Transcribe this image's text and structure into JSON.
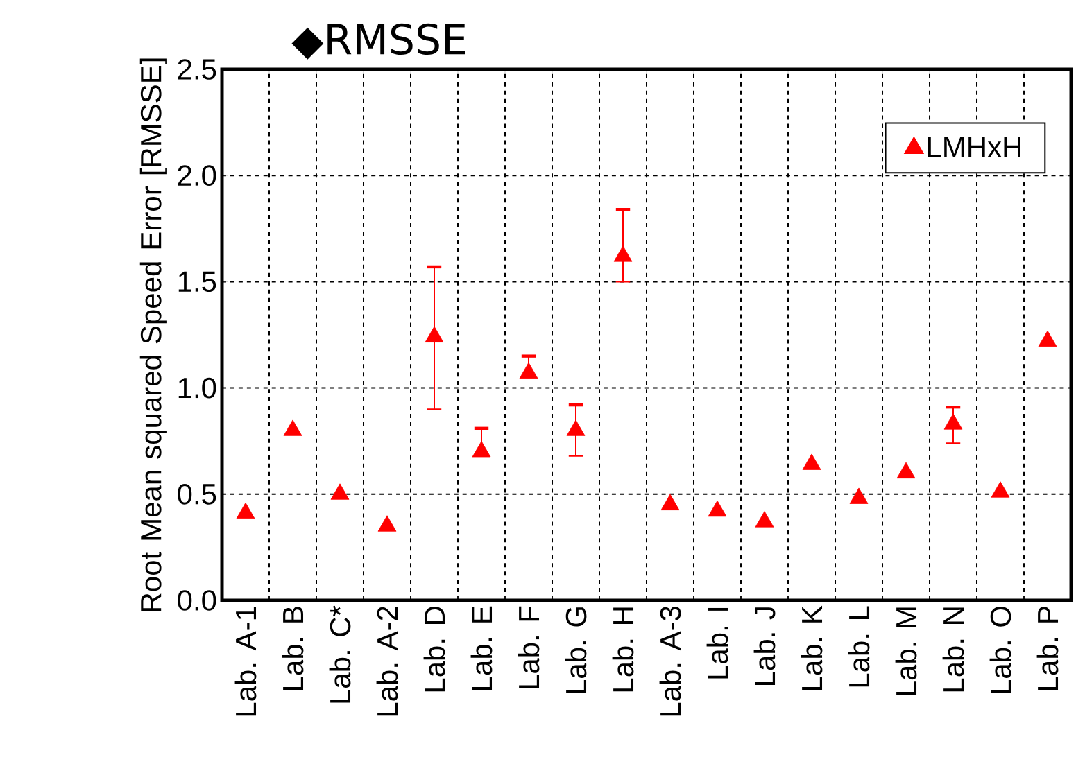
{
  "chart_data": {
    "type": "scatter",
    "title": "◆RMSSE",
    "ylabel": "Root Mean squared Speed Error [RMSSE]",
    "categories": [
      "Lab. A-1",
      "Lab. B",
      "Lab. C*",
      "Lab. A-2",
      "Lab. D",
      "Lab. E",
      "Lab. F",
      "Lab. G",
      "Lab. H",
      "Lab. A-3",
      "Lab. I",
      "Lab. J",
      "Lab. K",
      "Lab. L",
      "Lab. M",
      "Lab. N",
      "Lab. O",
      "Lab. P"
    ],
    "series": [
      {
        "name": "LMHxH",
        "color": "#ff0000",
        "values": [
          0.41,
          0.8,
          0.5,
          0.35,
          1.24,
          0.7,
          1.07,
          0.8,
          1.62,
          0.45,
          0.42,
          0.37,
          0.64,
          0.48,
          0.6,
          0.83,
          0.51,
          1.22
        ],
        "errors": [
          null,
          null,
          null,
          null,
          [
            0.9,
            1.57
          ],
          [
            0.7,
            0.81
          ],
          [
            1.07,
            1.15
          ],
          [
            0.68,
            0.92
          ],
          [
            1.5,
            1.84
          ],
          null,
          null,
          null,
          null,
          null,
          null,
          [
            0.74,
            0.91
          ],
          null,
          null
        ]
      }
    ],
    "ylim": [
      0,
      2.5
    ],
    "yticks": [
      {
        "value": 0,
        "label": "0.0"
      },
      {
        "value": 0.5,
        "label": "0.5"
      },
      {
        "value": 1,
        "label": "1.0"
      },
      {
        "value": 1.5,
        "label": "1.5"
      },
      {
        "value": 2,
        "label": "2.0"
      },
      {
        "value": 2.5,
        "label": "2.5"
      }
    ],
    "grid": true,
    "legend": "top right",
    "marker": "triangle"
  }
}
